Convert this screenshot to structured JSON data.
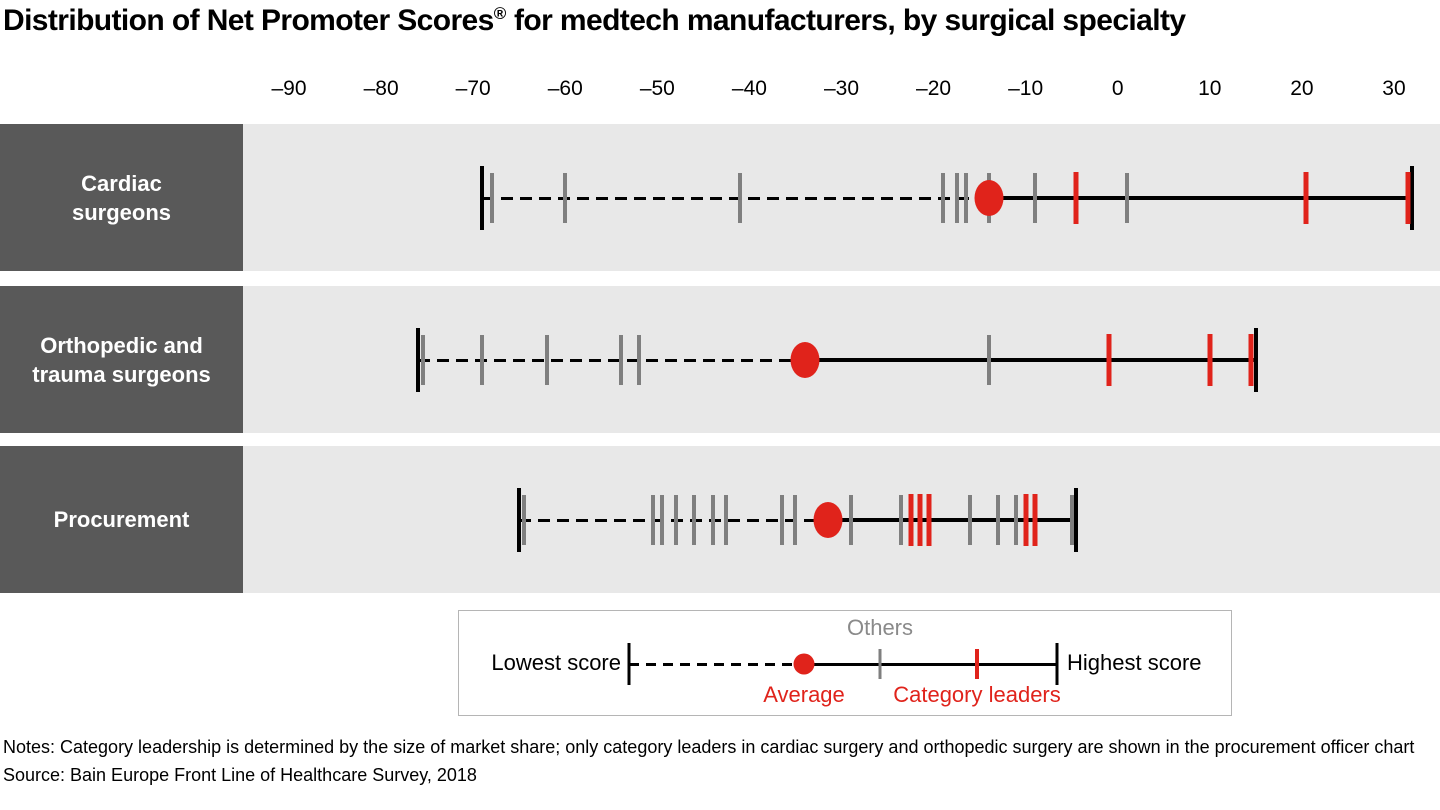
{
  "title": {
    "main": "Distribution of Net Promoter Scores",
    "registered": "®",
    "rest": " for medtech manufacturers, by surgical specialty"
  },
  "axis": {
    "min": -95,
    "max": 35,
    "tick_values": [
      -90,
      -80,
      -70,
      -60,
      -50,
      -40,
      -30,
      -20,
      -10,
      0,
      10,
      20,
      30
    ],
    "tick_labels": [
      "–90",
      "–80",
      "–70",
      "–60",
      "–50",
      "–40",
      "–30",
      "–20",
      "–10",
      "0",
      "10",
      "20",
      "30"
    ]
  },
  "chart_data": {
    "type": "scatter",
    "subtype": "dot-strip-distribution",
    "title": "Distribution of Net Promoter Scores® for medtech manufacturers, by surgical specialty",
    "xlabel": "Net Promoter Score",
    "xlim": [
      -95,
      35
    ],
    "x_tick_labels": [
      "–90",
      "–80",
      "–70",
      "–60",
      "–50",
      "–40",
      "–30",
      "–20",
      "–10",
      "0",
      "10",
      "20",
      "30"
    ],
    "grid": false,
    "rows": [
      {
        "label": "Cardiac surgeons",
        "label_lines": [
          "Cardiac",
          "surgeons"
        ],
        "lowest_score": -69,
        "highest_score": 32,
        "average": -14,
        "others": [
          -68,
          -60,
          -41,
          -19,
          -17.5,
          -16.5,
          -14,
          -9,
          1
        ],
        "category_leaders": [
          -4.5,
          20.5,
          31.5
        ]
      },
      {
        "label": "Orthopedic and trauma surgeons",
        "label_lines": [
          "Orthopedic and",
          "trauma surgeons"
        ],
        "lowest_score": -76,
        "highest_score": 15,
        "average": -34,
        "others": [
          -75.5,
          -69,
          -62,
          -54,
          -52,
          -14
        ],
        "category_leaders": [
          -1,
          10,
          14.5
        ]
      },
      {
        "label": "Procurement",
        "label_lines": [
          "Procurement"
        ],
        "lowest_score": -65,
        "highest_score": -4.5,
        "average": -31.5,
        "others": [
          -64.5,
          -50.5,
          -49.5,
          -48,
          -46,
          -44,
          -42.5,
          -36.5,
          -35,
          -29,
          -23.5,
          -16,
          -13,
          -11,
          -5
        ],
        "category_leaders": [
          -22.5,
          -21.5,
          -20.5,
          -10,
          -9
        ]
      }
    ]
  },
  "legend": {
    "lowest": "Lowest score",
    "others": "Others",
    "average": "Average",
    "leaders": "Category leaders",
    "highest": "Highest score"
  },
  "notes": "Notes: Category leadership is determined by the size of market share; only category leaders in cardiac surgery and orthopedic surgery are shown in the procurement officer chart",
  "source": "Source: Bain Europe Front Line of Healthcare Survey, 2018",
  "colors": {
    "red": "#e0231b",
    "tick_gray": "#7f7f7f",
    "band_bg": "#e8e8e8",
    "label_bg": "#595959",
    "line_black": "#000000",
    "others_label_gray": "#8a8a8a",
    "legend_border": "#b5b5b5"
  }
}
